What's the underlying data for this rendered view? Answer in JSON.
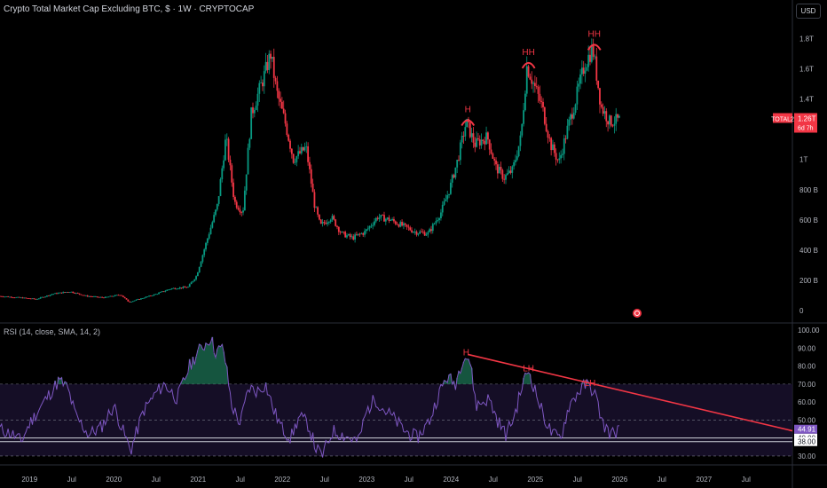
{
  "header": {
    "title": "Crypto Total Market Cap Excluding BTC, $ · 1W · CRYPTOCAP",
    "currency": "USD"
  },
  "rsi_header": "RSI (14, close, SMA, 14, 2)",
  "price_badge": {
    "symbol": "TOTAL2",
    "value": "1.26T",
    "sub": "6d 7h"
  },
  "colors": {
    "up": "#089981",
    "down": "#f23645",
    "rsi": "#7e57c2",
    "annotation": "#f23645"
  },
  "chart_data": [
    {
      "type": "candlestick",
      "title": "Crypto Total Market Cap Excluding BTC, $ · 1W · CRYPTOCAP",
      "y_unit": "USD",
      "y_ticks": [
        "0",
        "200 B",
        "400 B",
        "600 B",
        "800 B",
        "1T",
        "1.2T",
        "1.4T",
        "1.6T",
        "1.8T"
      ],
      "y_tick_values": [
        0,
        200,
        400,
        600,
        800,
        1000,
        1200,
        1400,
        1600,
        1800
      ],
      "ylim": [
        -30,
        1880
      ],
      "last_value": "1.26T",
      "x_ticks": [
        "2019",
        "Jul",
        "2020",
        "Jul",
        "2021",
        "Jul",
        "2022",
        "Jul",
        "2023",
        "Jul",
        "2024",
        "Jul",
        "2025",
        "Jul",
        "2026",
        "Jul",
        "2027",
        "Jul"
      ],
      "x_tick_dates": [
        2019.0,
        2019.5,
        2020.0,
        2020.5,
        2021.0,
        2021.5,
        2022.0,
        2022.5,
        2023.0,
        2023.5,
        2024.0,
        2024.5,
        2025.0,
        2025.5,
        2026.0,
        2026.5,
        2027.0,
        2027.5
      ],
      "xlim": [
        2018.65,
        2028.05
      ],
      "series_keypoints": [
        [
          2018.65,
          95
        ],
        [
          2018.9,
          85
        ],
        [
          2019.1,
          75
        ],
        [
          2019.3,
          110
        ],
        [
          2019.5,
          125
        ],
        [
          2019.7,
          95
        ],
        [
          2019.9,
          85
        ],
        [
          2020.1,
          105
        ],
        [
          2020.2,
          55
        ],
        [
          2020.35,
          80
        ],
        [
          2020.5,
          105
        ],
        [
          2020.7,
          145
        ],
        [
          2020.9,
          155
        ],
        [
          2021.0,
          230
        ],
        [
          2021.1,
          420
        ],
        [
          2021.25,
          700
        ],
        [
          2021.35,
          1150
        ],
        [
          2021.45,
          720
        ],
        [
          2021.55,
          650
        ],
        [
          2021.65,
          1300
        ],
        [
          2021.8,
          1550
        ],
        [
          2021.88,
          1700
        ],
        [
          2021.95,
          1450
        ],
        [
          2022.05,
          1250
        ],
        [
          2022.15,
          1000
        ],
        [
          2022.3,
          1080
        ],
        [
          2022.4,
          700
        ],
        [
          2022.47,
          560
        ],
        [
          2022.6,
          620
        ],
        [
          2022.72,
          510
        ],
        [
          2022.85,
          480
        ],
        [
          2023.0,
          520
        ],
        [
          2023.15,
          620
        ],
        [
          2023.3,
          600
        ],
        [
          2023.45,
          560
        ],
        [
          2023.6,
          520
        ],
        [
          2023.75,
          510
        ],
        [
          2023.9,
          650
        ],
        [
          2024.0,
          800
        ],
        [
          2024.1,
          1000
        ],
        [
          2024.2,
          1250
        ],
        [
          2024.3,
          1100
        ],
        [
          2024.45,
          1150
        ],
        [
          2024.55,
          950
        ],
        [
          2024.65,
          880
        ],
        [
          2024.75,
          930
        ],
        [
          2024.85,
          1150
        ],
        [
          2024.92,
          1620
        ],
        [
          2025.0,
          1500
        ],
        [
          2025.1,
          1350
        ],
        [
          2025.2,
          1100
        ],
        [
          2025.3,
          980
        ],
        [
          2025.4,
          1200
        ],
        [
          2025.5,
          1400
        ],
        [
          2025.6,
          1620
        ],
        [
          2025.7,
          1740
        ],
        [
          2025.8,
          1350
        ],
        [
          2025.9,
          1250
        ],
        [
          2026.0,
          1260
        ]
      ],
      "annotations": [
        {
          "label": "H",
          "date": 2024.2,
          "value": 1260
        },
        {
          "label": "HH",
          "date": 2024.92,
          "value": 1640
        },
        {
          "label": "HH",
          "date": 2025.7,
          "value": 1760
        }
      ]
    },
    {
      "type": "line",
      "title": "RSI (14, close, SMA, 14, 2)",
      "y_ticks": [
        "30.00",
        "40.00",
        "50.00",
        "60.00",
        "70.00",
        "80.00",
        "90.00",
        "100.00"
      ],
      "y_tick_values": [
        30,
        40,
        50,
        60,
        70,
        80,
        90,
        100
      ],
      "ylim": [
        28,
        102
      ],
      "bands": {
        "upper": 70,
        "middle": 50,
        "lower": 30
      },
      "levels": [
        40,
        38
      ],
      "level_labels": [
        "40.00",
        "38.00"
      ],
      "last_value": "44.91",
      "xlim": [
        2018.65,
        2028.05
      ],
      "series_keypoints": [
        [
          2018.65,
          45
        ],
        [
          2018.8,
          42
        ],
        [
          2018.9,
          38
        ],
        [
          2019.0,
          48
        ],
        [
          2019.2,
          62
        ],
        [
          2019.35,
          72
        ],
        [
          2019.45,
          68
        ],
        [
          2019.55,
          52
        ],
        [
          2019.7,
          42
        ],
        [
          2019.85,
          46
        ],
        [
          2020.0,
          58
        ],
        [
          2020.1,
          45
        ],
        [
          2020.2,
          33
        ],
        [
          2020.35,
          55
        ],
        [
          2020.5,
          65
        ],
        [
          2020.6,
          70
        ],
        [
          2020.75,
          62
        ],
        [
          2020.9,
          80
        ],
        [
          2021.0,
          88
        ],
        [
          2021.08,
          92
        ],
        [
          2021.15,
          96
        ],
        [
          2021.2,
          88
        ],
        [
          2021.3,
          90
        ],
        [
          2021.4,
          58
        ],
        [
          2021.5,
          48
        ],
        [
          2021.6,
          68
        ],
        [
          2021.7,
          66
        ],
        [
          2021.8,
          70
        ],
        [
          2021.9,
          55
        ],
        [
          2022.0,
          45
        ],
        [
          2022.1,
          40
        ],
        [
          2022.2,
          52
        ],
        [
          2022.3,
          48
        ],
        [
          2022.4,
          34
        ],
        [
          2022.47,
          30
        ],
        [
          2022.6,
          44
        ],
        [
          2022.7,
          42
        ],
        [
          2022.8,
          40
        ],
        [
          2022.9,
          38
        ],
        [
          2023.0,
          55
        ],
        [
          2023.1,
          62
        ],
        [
          2023.2,
          56
        ],
        [
          2023.3,
          52
        ],
        [
          2023.45,
          44
        ],
        [
          2023.6,
          40
        ],
        [
          2023.75,
          50
        ],
        [
          2023.85,
          64
        ],
        [
          2023.95,
          74
        ],
        [
          2024.05,
          70
        ],
        [
          2024.15,
          86
        ],
        [
          2024.22,
          84
        ],
        [
          2024.3,
          58
        ],
        [
          2024.45,
          62
        ],
        [
          2024.55,
          50
        ],
        [
          2024.65,
          42
        ],
        [
          2024.75,
          52
        ],
        [
          2024.85,
          70
        ],
        [
          2024.92,
          78
        ],
        [
          2025.0,
          66
        ],
        [
          2025.1,
          52
        ],
        [
          2025.2,
          42
        ],
        [
          2025.3,
          40
        ],
        [
          2025.4,
          58
        ],
        [
          2025.5,
          65
        ],
        [
          2025.6,
          70
        ],
        [
          2025.7,
          66
        ],
        [
          2025.8,
          48
        ],
        [
          2025.9,
          42
        ],
        [
          2026.0,
          45
        ]
      ],
      "annotations": [
        {
          "label": "H",
          "date": 2024.18,
          "value": 88
        },
        {
          "label": "LH",
          "date": 2024.92,
          "value": 79
        },
        {
          "label": "LH",
          "date": 2025.65,
          "value": 71
        }
      ],
      "trendline": {
        "from": [
          2024.2,
          86.5
        ],
        "to": [
          2028.05,
          44
        ]
      }
    }
  ]
}
